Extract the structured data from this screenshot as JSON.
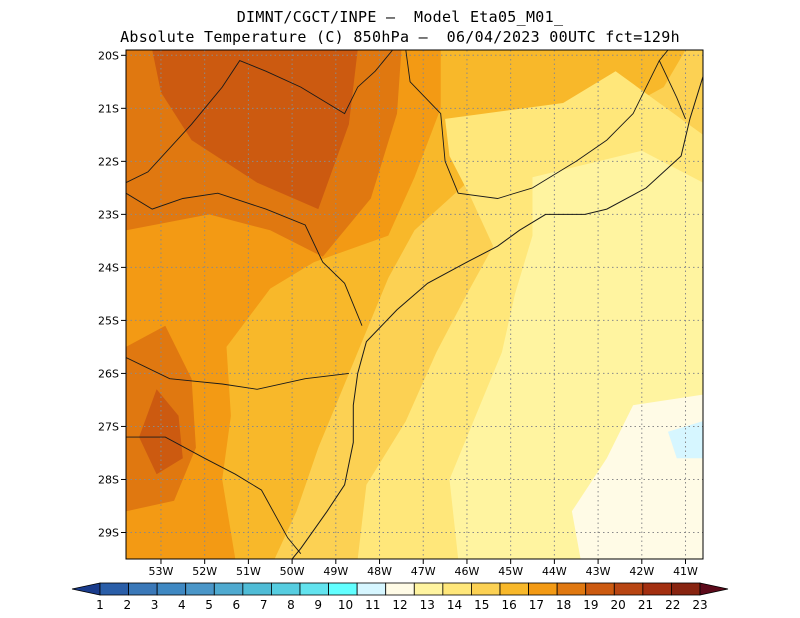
{
  "header": {
    "line1": "DIMNT/CGCT/INPE –  Model Eta05_M01_",
    "line2": "Absolute Temperature (C) 850hPa –  06/04/2023 00UTC fct=129h"
  },
  "map": {
    "lon_range": [
      -53.8,
      -40.6
    ],
    "lat_range": [
      -29.5,
      -19.9
    ],
    "lat_ticks": [
      {
        "value": -20,
        "label": "20S"
      },
      {
        "value": -21,
        "label": "21S"
      },
      {
        "value": -22,
        "label": "22S"
      },
      {
        "value": -23,
        "label": "23S"
      },
      {
        "value": -24,
        "label": "24S"
      },
      {
        "value": -25,
        "label": "25S"
      },
      {
        "value": -26,
        "label": "26S"
      },
      {
        "value": -27,
        "label": "27S"
      },
      {
        "value": -28,
        "label": "28S"
      },
      {
        "value": -29,
        "label": "29S"
      }
    ],
    "lon_ticks": [
      {
        "value": -53,
        "label": "53W"
      },
      {
        "value": -52,
        "label": "52W"
      },
      {
        "value": -51,
        "label": "51W"
      },
      {
        "value": -50,
        "label": "50W"
      },
      {
        "value": -49,
        "label": "49W"
      },
      {
        "value": -48,
        "label": "48W"
      },
      {
        "value": -47,
        "label": "47W"
      },
      {
        "value": -46,
        "label": "46W"
      },
      {
        "value": -45,
        "label": "45W"
      },
      {
        "value": -44,
        "label": "44W"
      },
      {
        "value": -43,
        "label": "43W"
      },
      {
        "value": -42,
        "label": "42W"
      },
      {
        "value": -41,
        "label": "41W"
      }
    ],
    "grid": "dotted",
    "base_value": 15,
    "temperature_regions": [
      {
        "value": 16,
        "lonlat": [
          [
            -53.8,
            -19.9
          ],
          [
            -41,
            -19.9
          ],
          [
            -41.5,
            -20.6
          ],
          [
            -43.5,
            -21.5
          ],
          [
            -46,
            -22.4
          ],
          [
            -47.2,
            -23.3
          ],
          [
            -47.8,
            -24.2
          ],
          [
            -48.3,
            -25.2
          ],
          [
            -48.8,
            -26.2
          ],
          [
            -49.4,
            -27.4
          ],
          [
            -49.9,
            -28.6
          ],
          [
            -50.4,
            -29.5
          ],
          [
            -53.8,
            -29.5
          ]
        ]
      },
      {
        "value": 17,
        "lonlat": [
          [
            -53.8,
            -19.9
          ],
          [
            -46.6,
            -19.9
          ],
          [
            -46.6,
            -21
          ],
          [
            -47.2,
            -22.3
          ],
          [
            -47.8,
            -23.4
          ],
          [
            -49.5,
            -23.9
          ],
          [
            -50.5,
            -24.4
          ],
          [
            -51.5,
            -25.5
          ],
          [
            -51.4,
            -26.8
          ],
          [
            -51.6,
            -28
          ],
          [
            -51.3,
            -29.5
          ],
          [
            -53.8,
            -29.5
          ]
        ]
      },
      {
        "value": 18,
        "lonlat": [
          [
            -53.8,
            -19.9
          ],
          [
            -47.5,
            -19.9
          ],
          [
            -47.6,
            -21.1
          ],
          [
            -48.2,
            -22.7
          ],
          [
            -49.3,
            -23.8
          ],
          [
            -50.5,
            -23.3
          ],
          [
            -51.9,
            -23
          ],
          [
            -53.8,
            -23.3
          ]
        ]
      },
      {
        "value": 18,
        "lonlat": [
          [
            -53.8,
            -25.5
          ],
          [
            -52.9,
            -25.1
          ],
          [
            -52.3,
            -26.1
          ],
          [
            -52.2,
            -27.4
          ],
          [
            -52.7,
            -28.4
          ],
          [
            -53.8,
            -28.6
          ]
        ]
      },
      {
        "value": 19,
        "lonlat": [
          [
            -53.2,
            -19.9
          ],
          [
            -48.5,
            -19.9
          ],
          [
            -48.7,
            -21.3
          ],
          [
            -49.4,
            -22.9
          ],
          [
            -50.8,
            -22.4
          ],
          [
            -52.3,
            -21.6
          ],
          [
            -53,
            -20.7
          ]
        ]
      },
      {
        "value": 19,
        "lonlat": [
          [
            -53.1,
            -26.3
          ],
          [
            -52.6,
            -26.8
          ],
          [
            -52.5,
            -27.6
          ],
          [
            -53.1,
            -27.9
          ],
          [
            -53.5,
            -27.2
          ]
        ]
      },
      {
        "value": 14,
        "lonlat": [
          [
            -46.5,
            -21.2
          ],
          [
            -43.8,
            -20.9
          ],
          [
            -42.6,
            -20.3
          ],
          [
            -40.6,
            -21.5
          ],
          [
            -40.6,
            -29.5
          ],
          [
            -48.5,
            -29.5
          ],
          [
            -48.3,
            -28.1
          ],
          [
            -47.4,
            -26.9
          ],
          [
            -46.7,
            -25.6
          ],
          [
            -46,
            -24.5
          ],
          [
            -45.4,
            -23.6
          ],
          [
            -45.9,
            -22.7
          ],
          [
            -46.4,
            -21.9
          ]
        ]
      },
      {
        "value": 13,
        "lonlat": [
          [
            -44.5,
            -22.3
          ],
          [
            -42,
            -21.8
          ],
          [
            -40.6,
            -22.4
          ],
          [
            -40.6,
            -29.5
          ],
          [
            -46.2,
            -29.5
          ],
          [
            -46.4,
            -28
          ],
          [
            -45.8,
            -26.8
          ],
          [
            -45.2,
            -25.6
          ],
          [
            -44.9,
            -24.5
          ],
          [
            -44.5,
            -23.4
          ]
        ]
      },
      {
        "value": 12,
        "lonlat": [
          [
            -40.6,
            -26.4
          ],
          [
            -42.2,
            -26.6
          ],
          [
            -42.8,
            -27.6
          ],
          [
            -43.6,
            -28.6
          ],
          [
            -43.4,
            -29.5
          ],
          [
            -40.6,
            -29.5
          ]
        ]
      },
      {
        "value": 11,
        "lonlat": [
          [
            -40.6,
            -26.9
          ],
          [
            -41.4,
            -27.1
          ],
          [
            -41.2,
            -27.6
          ],
          [
            -40.6,
            -27.6
          ]
        ]
      }
    ],
    "boundaries": [
      [
        [
          -47.7,
          -19.9
        ],
        [
          -48.1,
          -20.3
        ],
        [
          -48.5,
          -20.6
        ],
        [
          -48.8,
          -21.1
        ],
        [
          -49.8,
          -20.6
        ],
        [
          -50.6,
          -20.3
        ],
        [
          -51.2,
          -20.1
        ],
        [
          -51.6,
          -20.6
        ],
        [
          -52.3,
          -21.3
        ],
        [
          -53.3,
          -22.2
        ],
        [
          -53.8,
          -22.4
        ]
      ],
      [
        [
          -53.8,
          -22.6
        ],
        [
          -53.2,
          -22.9
        ],
        [
          -52.5,
          -22.7
        ],
        [
          -51.7,
          -22.6
        ],
        [
          -50.6,
          -22.9
        ],
        [
          -49.7,
          -23.2
        ],
        [
          -49.3,
          -23.9
        ],
        [
          -48.8,
          -24.3
        ],
        [
          -48.4,
          -25.1
        ]
      ],
      [
        [
          -53.8,
          -25.7
        ],
        [
          -52.8,
          -26.1
        ],
        [
          -51.6,
          -26.2
        ],
        [
          -50.8,
          -26.3
        ],
        [
          -49.7,
          -26.1
        ],
        [
          -48.7,
          -26
        ]
      ],
      [
        [
          -53.8,
          -27.2
        ],
        [
          -52.9,
          -27.2
        ],
        [
          -52,
          -27.6
        ],
        [
          -51.3,
          -27.9
        ],
        [
          -50.7,
          -28.2
        ],
        [
          -50.1,
          -29.1
        ],
        [
          -49.8,
          -29.4
        ]
      ],
      [
        [
          -47.4,
          -19.9
        ],
        [
          -47.3,
          -20.5
        ],
        [
          -46.6,
          -21.1
        ],
        [
          -46.5,
          -22
        ],
        [
          -46.2,
          -22.6
        ],
        [
          -45.3,
          -22.7
        ],
        [
          -44.5,
          -22.5
        ]
      ],
      [
        [
          -44.5,
          -22.5
        ],
        [
          -43.5,
          -22
        ],
        [
          -42.8,
          -21.6
        ],
        [
          -42.2,
          -21.1
        ],
        [
          -41.9,
          -20.6
        ],
        [
          -41.6,
          -20.1
        ],
        [
          -41.4,
          -19.9
        ]
      ],
      [
        [
          -41.6,
          -20.1
        ],
        [
          -41.2,
          -20.8
        ],
        [
          -41,
          -21.2
        ]
      ]
    ],
    "coastline": [
      [
        -40.6,
        -20.4
      ],
      [
        -40.9,
        -21.2
      ],
      [
        -41.1,
        -21.9
      ],
      [
        -41.9,
        -22.5
      ],
      [
        -42.8,
        -22.9
      ],
      [
        -43.3,
        -23
      ],
      [
        -44.2,
        -23
      ],
      [
        -44.8,
        -23.3
      ],
      [
        -45.3,
        -23.6
      ],
      [
        -46,
        -23.9
      ],
      [
        -46.9,
        -24.3
      ],
      [
        -47.6,
        -24.8
      ],
      [
        -48.3,
        -25.4
      ],
      [
        -48.5,
        -26
      ],
      [
        -48.6,
        -26.6
      ],
      [
        -48.6,
        -27.3
      ],
      [
        -48.8,
        -28.1
      ],
      [
        -49.2,
        -28.6
      ],
      [
        -49.8,
        -29.3
      ],
      [
        -50,
        -29.5
      ]
    ]
  },
  "colorbar": {
    "labels": [
      "1",
      "2",
      "3",
      "4",
      "5",
      "6",
      "7",
      "8",
      "9",
      "10",
      "11",
      "12",
      "13",
      "14",
      "15",
      "16",
      "17",
      "18",
      "19",
      "20",
      "21",
      "22",
      "23"
    ],
    "colors": [
      "#1a3c8c",
      "#2a5ea8",
      "#3a78b8",
      "#3f88c2",
      "#4a96c8",
      "#4faad0",
      "#4fbcd6",
      "#56cde0",
      "#62e3ee",
      "#62ffff",
      "#d6f6ff",
      "#fffbe6",
      "#fff4a0",
      "#ffe77a",
      "#fcd153",
      "#f8b82a",
      "#f39a14",
      "#e07810",
      "#cc5a10",
      "#b84512",
      "#a32f10",
      "#882410",
      "#5c0a1a"
    ]
  }
}
